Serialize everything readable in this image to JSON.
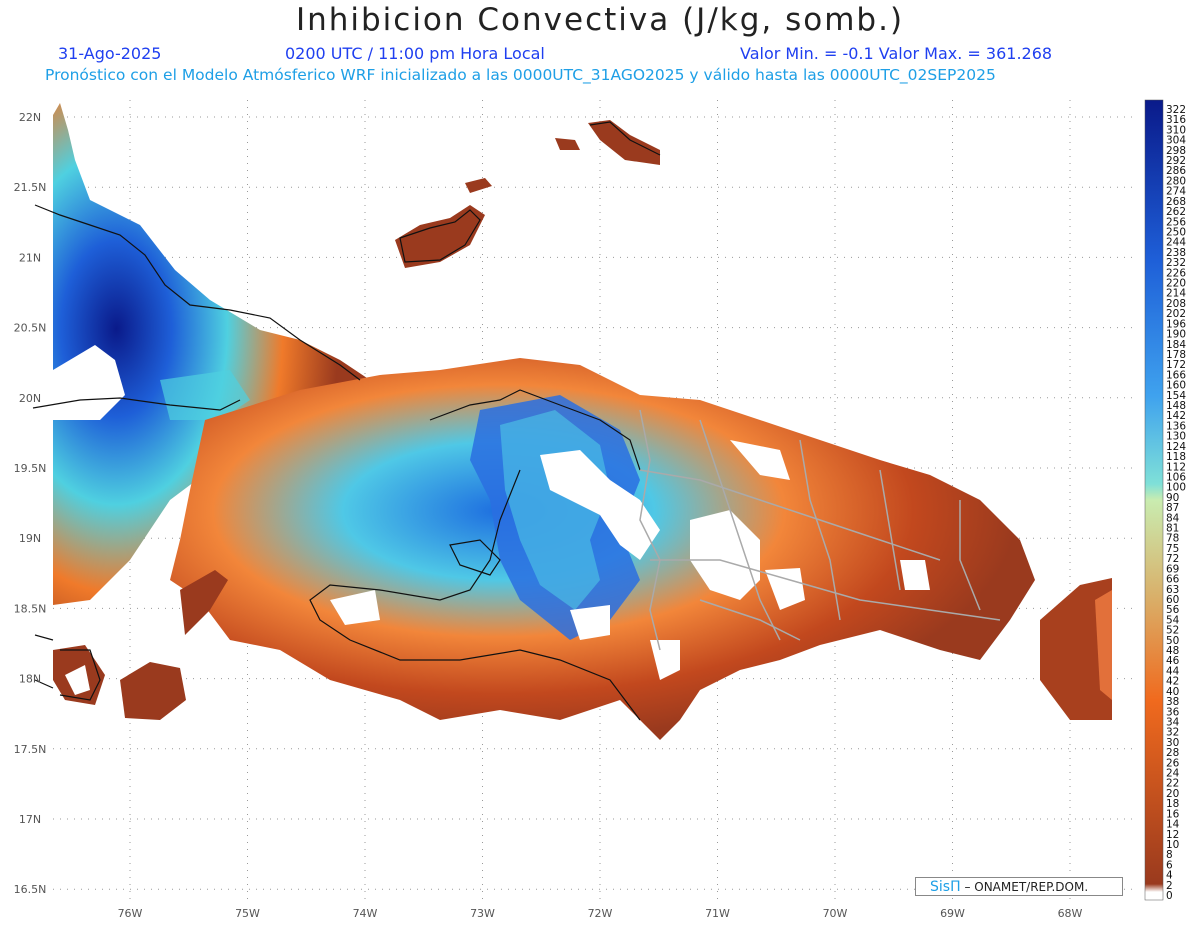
{
  "header": {
    "title": "Inhibicion Convectiva (J/kg, somb.)",
    "date": "31-Ago-2025",
    "time": "0200 UTC / 11:00 pm Hora Local",
    "minmax": "Valor Min. = -0.1  Valor Max. = 361.268",
    "forecast": "Pronóstico con el Modelo Atmósferico WRF inicializado a las 0000UTC_31AGO2025 y válido hasta las  0000UTC_02SEP2025"
  },
  "axes": {
    "lat_labels": [
      "22N",
      "21.5N",
      "21N",
      "20.5N",
      "20N",
      "19.5N",
      "19N",
      "18.5N",
      "18N",
      "17.5N",
      "17N",
      "16.5N"
    ],
    "lon_labels": [
      "76W",
      "75W",
      "74W",
      "73W",
      "72W",
      "71W",
      "70W",
      "69W",
      "68W"
    ]
  },
  "colorbar": {
    "labels": [
      "322",
      "316",
      "310",
      "304",
      "298",
      "292",
      "286",
      "280",
      "274",
      "268",
      "262",
      "256",
      "250",
      "244",
      "238",
      "232",
      "226",
      "220",
      "214",
      "208",
      "202",
      "196",
      "190",
      "184",
      "178",
      "172",
      "166",
      "160",
      "154",
      "148",
      "142",
      "136",
      "130",
      "124",
      "118",
      "112",
      "106",
      "100",
      "90",
      "87",
      "84",
      "81",
      "78",
      "75",
      "72",
      "69",
      "66",
      "63",
      "60",
      "56",
      "54",
      "52",
      "50",
      "48",
      "46",
      "44",
      "42",
      "40",
      "38",
      "36",
      "34",
      "32",
      "30",
      "28",
      "26",
      "24",
      "22",
      "20",
      "18",
      "16",
      "14",
      "12",
      "10",
      "8",
      "6",
      "4",
      "2",
      "0"
    ],
    "colors": {
      "high": "#0a1a8a",
      "mid_blue": "#1e6fe0",
      "cyan": "#4fd6d8",
      "green": "#c9ecb0",
      "tan": "#d9b06a",
      "orange": "#f06a1e",
      "brown": "#9a3a1e",
      "zero": "#ffffff"
    }
  },
  "credit": {
    "sis": "SisΠ",
    "org": "– ONAMET/REP.DOM."
  }
}
